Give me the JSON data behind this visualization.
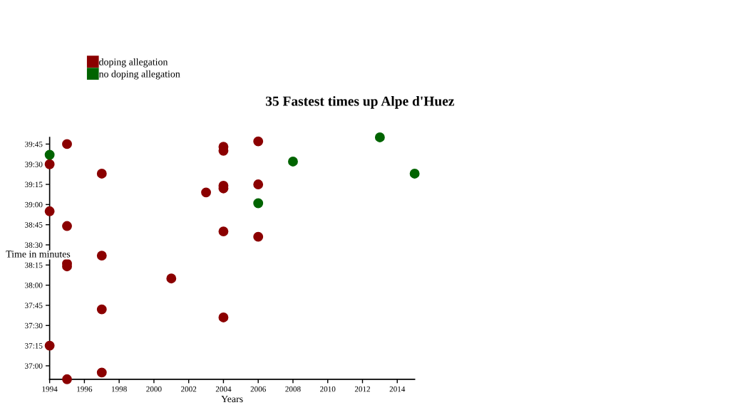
{
  "chart_data": {
    "type": "scatter",
    "title": "35 Fastest times up Alpe d'Huez",
    "xlabel": "Years",
    "ylabel": "Time in minutes",
    "xlim": [
      1994,
      2015
    ],
    "xticks": [
      1994,
      1996,
      1998,
      2000,
      2002,
      2004,
      2006,
      2008,
      2010,
      2012,
      2014
    ],
    "ylim": [
      2210,
      2390
    ],
    "yticks": [
      {
        "value": 2220,
        "label": "37:00"
      },
      {
        "value": 2235,
        "label": "37:15"
      },
      {
        "value": 2250,
        "label": "37:30"
      },
      {
        "value": 2265,
        "label": "37:45"
      },
      {
        "value": 2280,
        "label": "38:00"
      },
      {
        "value": 2295,
        "label": "38:15"
      },
      {
        "value": 2310,
        "label": "38:30"
      },
      {
        "value": 2325,
        "label": "38:45"
      },
      {
        "value": 2340,
        "label": "39:00"
      },
      {
        "value": 2355,
        "label": "39:15"
      },
      {
        "value": 2370,
        "label": "39:30"
      },
      {
        "value": 2385,
        "label": "39:45"
      }
    ],
    "grid": false,
    "legend": "top left",
    "marker": "circle",
    "series": [
      {
        "name": "doping allegation",
        "color": "#8b0000",
        "x": [
          1994,
          1994,
          1994,
          1995,
          1995,
          1995,
          1995,
          1995,
          1997,
          1997,
          1997,
          1997,
          2001,
          2003,
          2004,
          2004,
          2004,
          2004,
          2004,
          2004,
          2006,
          2006,
          2006
        ],
        "values": [
          2370,
          2335,
          2235,
          2385,
          2324,
          2296,
          2294,
          2210,
          2363,
          2302,
          2262,
          2215,
          2285,
          2349,
          2383,
          2380,
          2354,
          2352,
          2320,
          2256,
          2387,
          2355,
          2316
        ]
      },
      {
        "name": "no doping allegation",
        "color": "#006400",
        "x": [
          1994,
          2006,
          2008,
          2013,
          2015
        ],
        "values": [
          2377,
          2341,
          2372,
          2390,
          2363
        ]
      }
    ]
  }
}
